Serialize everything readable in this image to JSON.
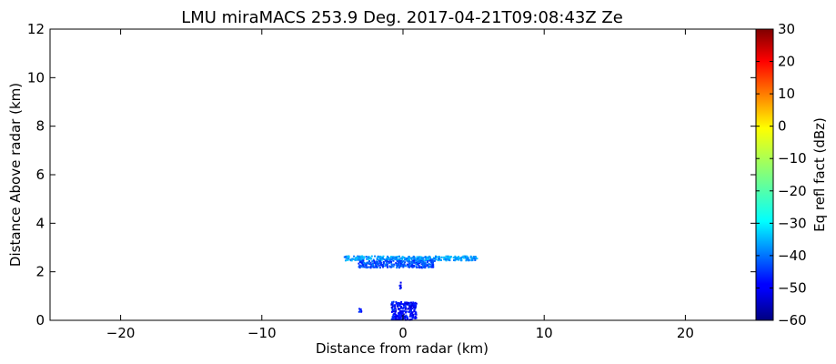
{
  "chart_data": {
    "type": "heatmap",
    "title": "LMU miraMACS 253.9 Deg. 2017-04-21T09:08:43Z  Ze",
    "xlabel": "Distance from radar (km)",
    "ylabel": "Distance Above radar  (km)",
    "xlim": [
      -25,
      25
    ],
    "ylim": [
      0,
      12
    ],
    "x_ticks": [
      -20,
      -10,
      0,
      10,
      20
    ],
    "x_tick_labels": [
      "−20",
      "−10",
      "0",
      "10",
      "20"
    ],
    "y_ticks": [
      0,
      2,
      4,
      6,
      8,
      10,
      12
    ],
    "y_tick_labels": [
      "0",
      "2",
      "4",
      "6",
      "8",
      "10",
      "12"
    ],
    "grid": false,
    "colorbar": {
      "label": "Eq refl fact (dBz)",
      "colormap": "jet",
      "range": [
        -60,
        30
      ],
      "ticks": [
        30,
        20,
        10,
        0,
        -10,
        -20,
        -30,
        -40,
        -50,
        -60
      ],
      "tick_labels": [
        "30",
        "20",
        "10",
        "0",
        "−10",
        "−20",
        "−30",
        "−40",
        "−50",
        "−60"
      ]
    },
    "echoes": [
      {
        "x": [
          -4.2,
          5.2
        ],
        "y": [
          2.5,
          2.68
        ],
        "dbz": -35
      },
      {
        "x": [
          -3.2,
          2.2
        ],
        "y": [
          2.2,
          2.5
        ],
        "dbz": -42
      },
      {
        "x": [
          -0.9,
          0.9
        ],
        "y": [
          0.05,
          0.8
        ],
        "dbz": -48
      },
      {
        "x": [
          -0.3,
          -0.2
        ],
        "y": [
          1.3,
          1.6
        ],
        "dbz": -48
      },
      {
        "x": [
          -3.2,
          -3.0
        ],
        "y": [
          0.35,
          0.55
        ],
        "dbz": -45
      }
    ]
  }
}
